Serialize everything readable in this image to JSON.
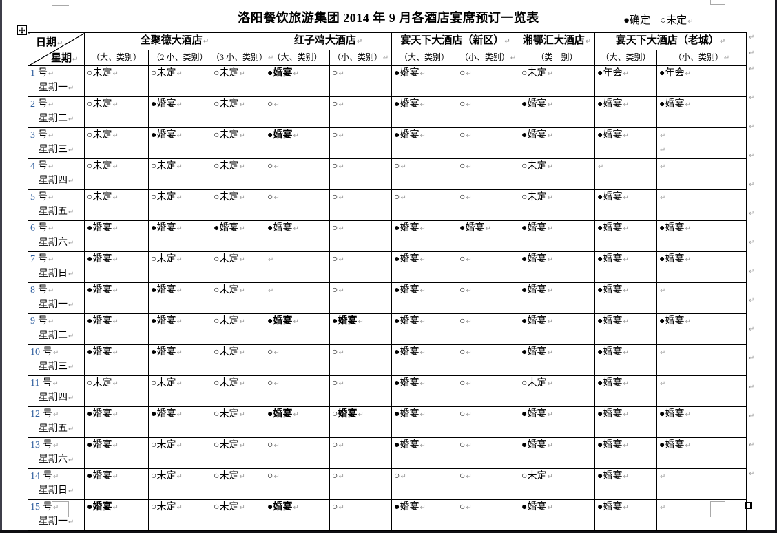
{
  "page": {
    "title": "洛阳餐饮旅游集团 2014 年 9 月各酒店宴席预订一览表",
    "legend": {
      "confirmed": "●确定",
      "pending": "○未定"
    }
  },
  "marks": {
    "pilcrow": "↵"
  },
  "table": {
    "corner": {
      "top": "日期",
      "bottom": "星期"
    },
    "day_suffix": "号",
    "groups": [
      {
        "name": "全聚德大酒店",
        "subs": [
          "（大、类别）",
          "（2 小、类别）",
          "（3 小、类别）"
        ]
      },
      {
        "name": "红子鸡大酒店",
        "subs": [
          "（大、类别）",
          "（小、类别）"
        ]
      },
      {
        "name": "宴天下大酒店（新区）",
        "subs": [
          "（大、类别）",
          "（小、类别）"
        ]
      },
      {
        "name": "湘鄂汇大酒店",
        "subs": [
          "（类　别）"
        ]
      },
      {
        "name": "宴天下大酒店（老城）",
        "subs": [
          "（大、类别）",
          "（小、类别）"
        ]
      }
    ],
    "rows": [
      {
        "n": "1",
        "w": "星期一",
        "c": [
          {
            "t": "○未定"
          },
          {
            "t": "○未定"
          },
          {
            "t": "○未定"
          },
          {
            "t": "●婚宴",
            "b": 1
          },
          {
            "t": "○"
          },
          {
            "t": "●婚宴"
          },
          {
            "t": "○"
          },
          {
            "t": "○未定"
          },
          {
            "t": "●年会"
          },
          {
            "t": "●年会"
          }
        ]
      },
      {
        "n": "2",
        "w": "星期二",
        "c": [
          {
            "t": "○未定"
          },
          {
            "t": "●婚宴"
          },
          {
            "t": "○未定"
          },
          {
            "t": "○"
          },
          {
            "t": "○"
          },
          {
            "t": "●婚宴"
          },
          {
            "t": "○"
          },
          {
            "t": "●婚宴"
          },
          {
            "t": "●婚宴"
          },
          {
            "t": "●婚宴"
          }
        ]
      },
      {
        "n": "3",
        "w": "星期三",
        "c": [
          {
            "t": "○未定"
          },
          {
            "t": "●婚宴"
          },
          {
            "t": "○未定"
          },
          {
            "t": "●婚宴",
            "b": 1
          },
          {
            "t": "○"
          },
          {
            "t": "●婚宴"
          },
          {
            "t": "○"
          },
          {
            "t": "●婚宴"
          },
          {
            "t": "●婚宴"
          },
          {
            "t": "",
            "p2": 1
          }
        ]
      },
      {
        "n": "4",
        "w": "星期四",
        "c": [
          {
            "t": "○未定"
          },
          {
            "t": "○未定"
          },
          {
            "t": "○未定"
          },
          {
            "t": "○"
          },
          {
            "t": "○"
          },
          {
            "t": "○"
          },
          {
            "t": "○"
          },
          {
            "t": "○未定"
          },
          {
            "t": ""
          },
          {
            "t": ""
          }
        ]
      },
      {
        "n": "5",
        "w": "星期五",
        "c": [
          {
            "t": "○未定"
          },
          {
            "t": "○未定"
          },
          {
            "t": "○未定"
          },
          {
            "t": "○"
          },
          {
            "t": "○"
          },
          {
            "t": "○"
          },
          {
            "t": "○"
          },
          {
            "t": "○未定"
          },
          {
            "t": "●婚宴"
          },
          {
            "t": ""
          }
        ]
      },
      {
        "n": "6",
        "w": "星期六",
        "c": [
          {
            "t": "●婚宴"
          },
          {
            "t": "●婚宴"
          },
          {
            "t": "●婚宴"
          },
          {
            "t": "●婚宴"
          },
          {
            "t": "○"
          },
          {
            "t": "●婚宴"
          },
          {
            "t": "●婚宴"
          },
          {
            "t": "●婚宴"
          },
          {
            "t": "●婚宴"
          },
          {
            "t": "●婚宴"
          }
        ]
      },
      {
        "n": "7",
        "w": "星期日",
        "c": [
          {
            "t": "●婚宴"
          },
          {
            "t": "○未定"
          },
          {
            "t": "○未定"
          },
          {
            "t": ""
          },
          {
            "t": "○"
          },
          {
            "t": "●婚宴"
          },
          {
            "t": "○"
          },
          {
            "t": "●婚宴"
          },
          {
            "t": "●婚宴"
          },
          {
            "t": "●婚宴"
          }
        ]
      },
      {
        "n": "8",
        "w": "星期一",
        "c": [
          {
            "t": "●婚宴"
          },
          {
            "t": "●婚宴"
          },
          {
            "t": "○未定"
          },
          {
            "t": ""
          },
          {
            "t": "○"
          },
          {
            "t": "●婚宴"
          },
          {
            "t": "○"
          },
          {
            "t": "●婚宴"
          },
          {
            "t": "●婚宴"
          },
          {
            "t": ""
          }
        ]
      },
      {
        "n": "9",
        "w": "星期二",
        "c": [
          {
            "t": "●婚宴"
          },
          {
            "t": "●婚宴"
          },
          {
            "t": "○未定"
          },
          {
            "t": "●婚宴",
            "b": 1
          },
          {
            "t": "●婚宴",
            "b": 1
          },
          {
            "t": "●婚宴"
          },
          {
            "t": "○"
          },
          {
            "t": "●婚宴"
          },
          {
            "t": "●婚宴"
          },
          {
            "t": "●婚宴"
          }
        ]
      },
      {
        "n": "10",
        "w": "星期三",
        "c": [
          {
            "t": "●婚宴"
          },
          {
            "t": "●婚宴"
          },
          {
            "t": "○未定"
          },
          {
            "t": "○"
          },
          {
            "t": "○"
          },
          {
            "t": "●婚宴"
          },
          {
            "t": "○"
          },
          {
            "t": "●婚宴"
          },
          {
            "t": "●婚宴"
          },
          {
            "t": ""
          }
        ]
      },
      {
        "n": "11",
        "w": "星期四",
        "c": [
          {
            "t": "○未定"
          },
          {
            "t": "○未定"
          },
          {
            "t": "○未定"
          },
          {
            "t": "○"
          },
          {
            "t": "○"
          },
          {
            "t": "●婚宴"
          },
          {
            "t": "○"
          },
          {
            "t": "○未定"
          },
          {
            "t": "●婚宴"
          },
          {
            "t": ""
          }
        ]
      },
      {
        "n": "12",
        "w": "星期五",
        "c": [
          {
            "t": "●婚宴"
          },
          {
            "t": "●婚宴"
          },
          {
            "t": "○未定"
          },
          {
            "t": "●婚宴",
            "b": 1
          },
          {
            "t": "○婚宴",
            "b": 1
          },
          {
            "t": "●婚宴"
          },
          {
            "t": "○"
          },
          {
            "t": "●婚宴"
          },
          {
            "t": "●婚宴"
          },
          {
            "t": "●婚宴"
          }
        ]
      },
      {
        "n": "13",
        "w": "星期六",
        "c": [
          {
            "t": "●婚宴"
          },
          {
            "t": "○未定"
          },
          {
            "t": "○未定"
          },
          {
            "t": "○"
          },
          {
            "t": "○"
          },
          {
            "t": "●婚宴"
          },
          {
            "t": "○"
          },
          {
            "t": "●婚宴"
          },
          {
            "t": "●婚宴"
          },
          {
            "t": "●婚宴"
          }
        ]
      },
      {
        "n": "14",
        "w": "星期日",
        "c": [
          {
            "t": "●婚宴"
          },
          {
            "t": "○未定"
          },
          {
            "t": "○未定"
          },
          {
            "t": "○"
          },
          {
            "t": "○"
          },
          {
            "t": "○"
          },
          {
            "t": "○"
          },
          {
            "t": "○未定"
          },
          {
            "t": "●婚宴"
          },
          {
            "t": ""
          }
        ]
      },
      {
        "n": "15",
        "w": "星期一",
        "c": [
          {
            "t": "●婚宴",
            "b": 1
          },
          {
            "t": "○未定"
          },
          {
            "t": "○未定"
          },
          {
            "t": "●婚宴",
            "b": 1
          },
          {
            "t": "○"
          },
          {
            "t": "●婚宴"
          },
          {
            "t": "○"
          },
          {
            "t": "●婚宴"
          },
          {
            "t": "●婚宴"
          },
          {
            "t": ""
          }
        ]
      }
    ]
  }
}
